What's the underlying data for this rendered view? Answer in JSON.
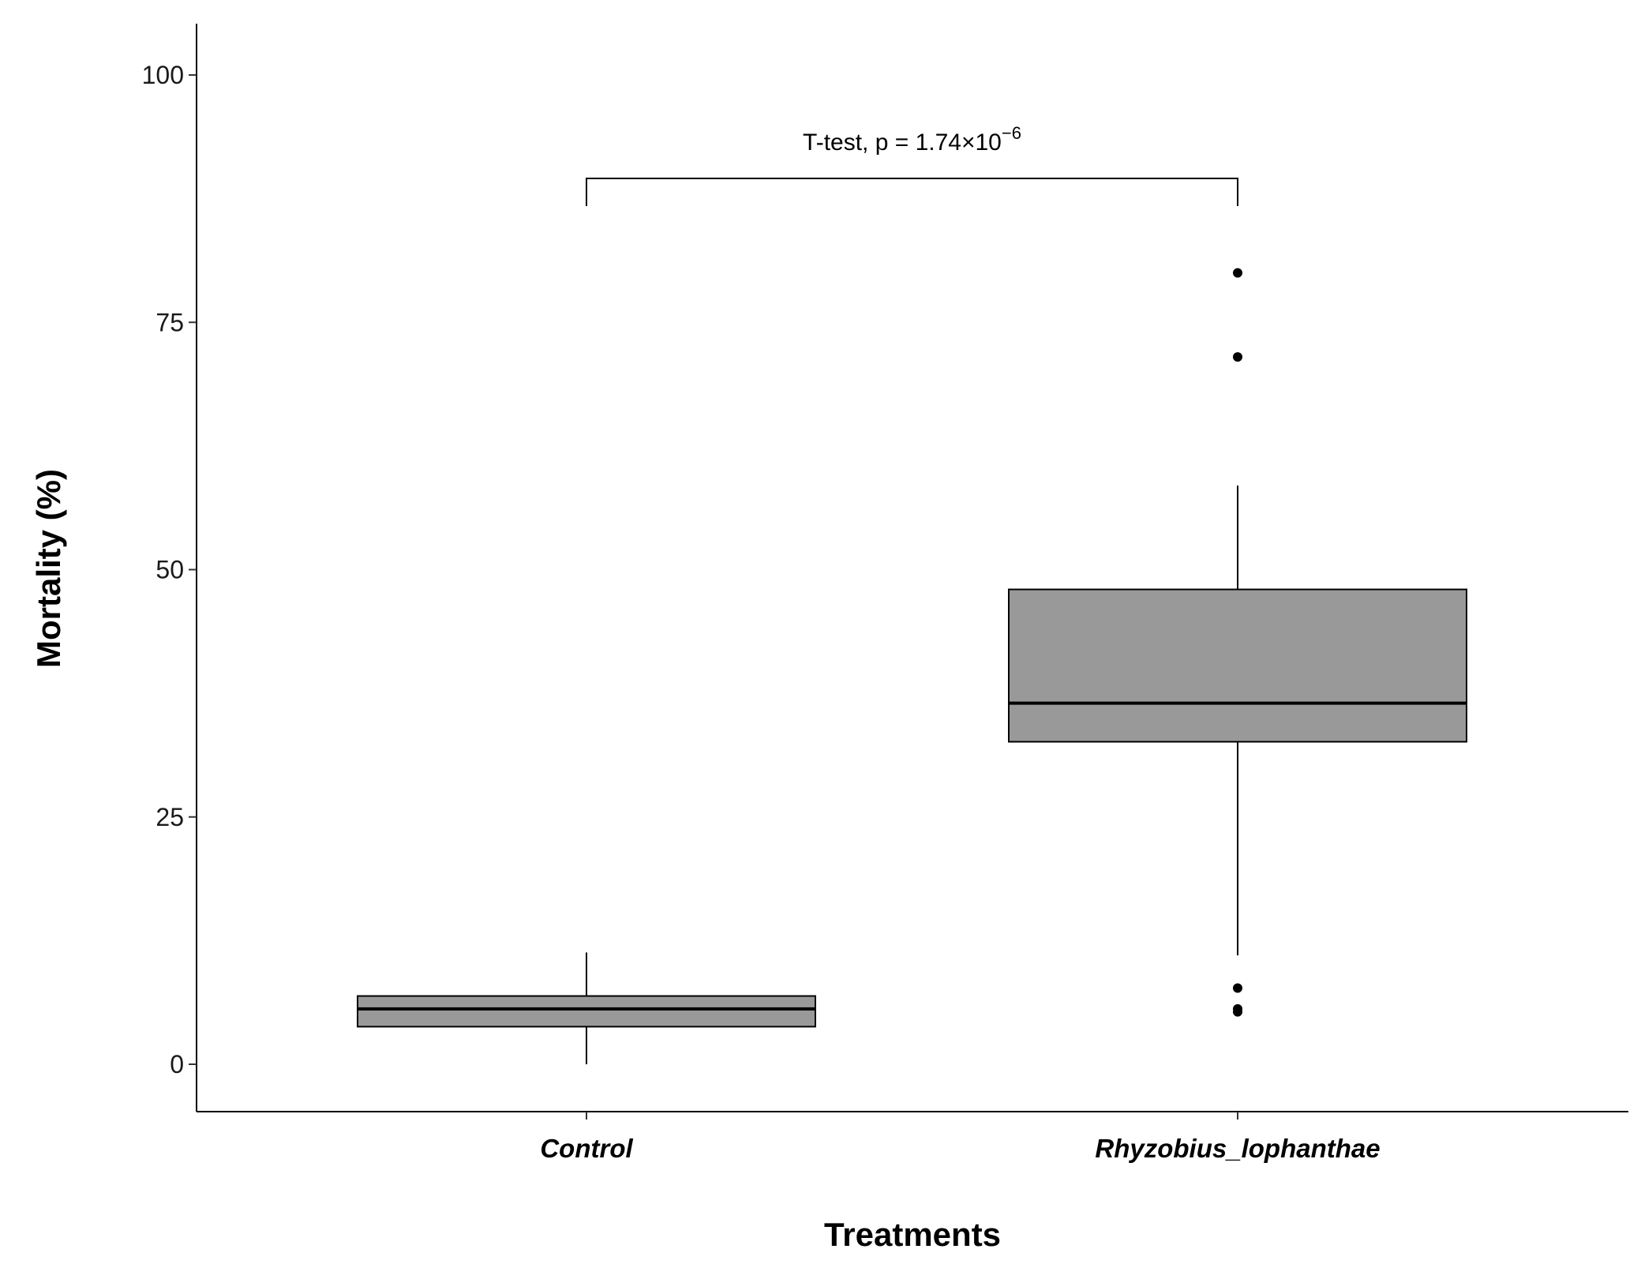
{
  "chart_data": {
    "type": "box",
    "xlabel": "Treatments",
    "ylabel": "Mortality (%)",
    "ylim": [
      -5,
      105
    ],
    "yticks": [
      0,
      25,
      50,
      75,
      100
    ],
    "grid": false,
    "legend": "none",
    "box_fill": "#999999",
    "categories": [
      "Control",
      "Rhyzobius_lophanthae"
    ],
    "boxes": [
      {
        "category": "Control",
        "whisker_low": 0,
        "q1": 3.8,
        "median": 5.6,
        "q3": 6.9,
        "whisker_high": 11.3,
        "outliers": []
      },
      {
        "category": "Rhyzobius_lophanthae",
        "whisker_low": 11.0,
        "q1": 32.6,
        "median": 36.5,
        "q3": 48.0,
        "whisker_high": 58.5,
        "outliers": [
          80.0,
          71.5,
          7.7,
          5.6,
          5.3
        ]
      }
    ],
    "annotation": {
      "text": "T-test, p = 1.74×10",
      "exponent": "−6",
      "from": "Control",
      "to": "Rhyzobius_lophanthae"
    }
  }
}
